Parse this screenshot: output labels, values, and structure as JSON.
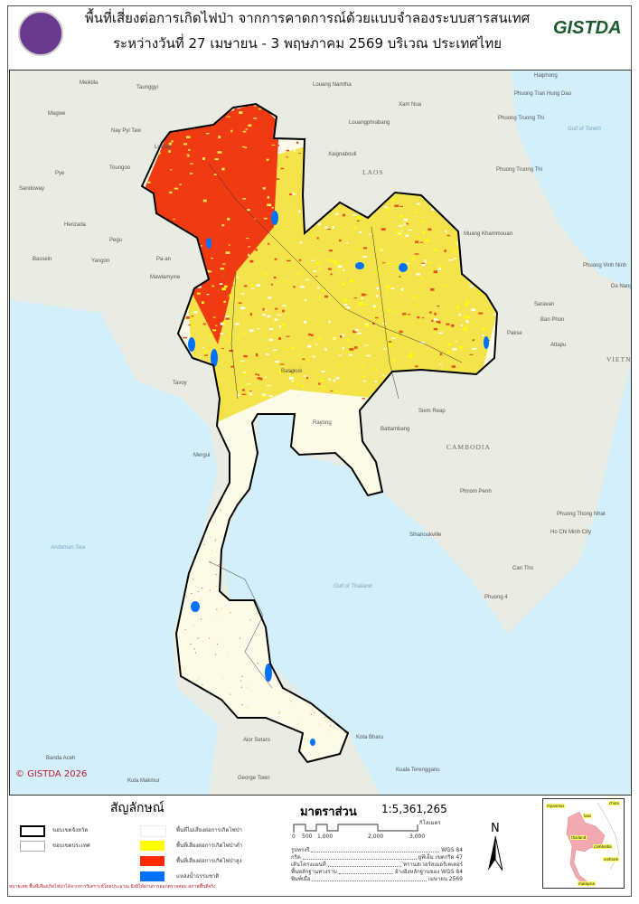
{
  "header": {
    "title_line1": "พื้นที่เสี่ยงต่อการเกิดไฟป่า จากการคาดการณ์ด้วยแบบจำลองระบบสารสนเทศ",
    "title_line2": "ระหว่างวันที่ 27 เมษายน - 3 พฤษภาคม 2569 บริเวณ ประเทศไทย",
    "left_logo": "seal-logo",
    "right_logo": "GISTDA"
  },
  "map": {
    "copyright": "© GISTDA 2026",
    "colors": {
      "no_risk": "#ffffff",
      "low_risk": "#ffff00",
      "high_risk": "#ff2a00",
      "water": "#0070ff",
      "land": "#e9ece2",
      "sea": "#d3effa"
    },
    "labels": [
      "Meiktila",
      "Taunggyi",
      "Magwe",
      "Nay Pyi Taw",
      "Loikaw",
      "Toungoo",
      "Pye",
      "Sandoway",
      "Henzada",
      "Pegu",
      "Bassein",
      "Yangon",
      "Pa-an",
      "Mawlamyine",
      "Louang Namtha",
      "Xam Nua",
      "Louangphrabang",
      "Xaignabouli",
      "Haiphong",
      "Phuong Tran Hung Dao",
      "Phuong Truong Thi",
      "Phuong Truong Thi",
      "Muang Khammouan",
      "Phuong Vinh Ninh",
      "Da Nang",
      "Saravan",
      "Ban Phon",
      "Pakse",
      "Attapu",
      "Tavoy",
      "Siem Reap",
      "Battambang",
      "Mergui",
      "Phnom Penh",
      "Phuong Thong Nhat",
      "Ho Chi Minh City",
      "Sihanoukville",
      "Can Tho",
      "Phuong 4",
      "Kota Bharu",
      "Alor Setaro",
      "Banda Aceh",
      "Kuala Terengganu",
      "George Town",
      "Kuta Makmur",
      "Bangkok",
      "Rayong"
    ],
    "countries": [
      "LAOS",
      "CAMBODIA",
      "VIETNAM"
    ],
    "seas": [
      "Gulf of Tonkin",
      "Andaman Sea",
      "Gulf of Thailand"
    ]
  },
  "legend": {
    "title": "สัญลักษณ์",
    "items": [
      {
        "label": "ขอบเขตจังหวัด"
      },
      {
        "label": "ขอบเขตประเทศ"
      },
      {
        "label": "พื้นที่ไม่เสี่ยงต่อการเกิดไฟป่า"
      },
      {
        "label": "พื้นที่เสี่ยงต่อการเกิดไฟป่าต่ำ"
      },
      {
        "label": "พื้นที่เสี่ยงต่อการเกิดไฟป่าสูง"
      },
      {
        "label": "แหล่งน้ำธรรมชาติ"
      }
    ],
    "note": "หมายเหตุ พื้นที่เสี่ยงเกิดไฟป่าได้จากการวิเคราะห์โดยประมาณ ยังมิได้ผ่านการออกตรวจสอบ สภาพพื้นที่จริง"
  },
  "scale": {
    "title": "มาตราส่วน",
    "ratio": "1:5,361,265",
    "ticks": [
      "0",
      "500",
      "1,000",
      "2,000",
      "3,000"
    ],
    "unit": "กิโลเมตร"
  },
  "metadata": [
    {
      "key": "รูปทรงรี",
      "value": "WGS 84"
    },
    {
      "key": "กริด",
      "value": "ยูทีเอ็ม เขตกริด 47"
    },
    {
      "key": "เส้นโครงแผนที่",
      "value": "ทรานสเวอร์สเมอร์เคเตอร์"
    },
    {
      "key": "พื้นหลักฐานทางราบ",
      "value": "อ้างอิงหลักฐานของ WGS 84"
    },
    {
      "key": "พิมพ์เมื่อ",
      "value": "เมษายน 2569"
    }
  ],
  "north_arrow": "N",
  "inset": {
    "labels": [
      "myanmar",
      "china",
      "laos",
      "thailand",
      "cambodia",
      "vietnam",
      "malaysia"
    ],
    "highlight_color": "#f4a9b0"
  }
}
